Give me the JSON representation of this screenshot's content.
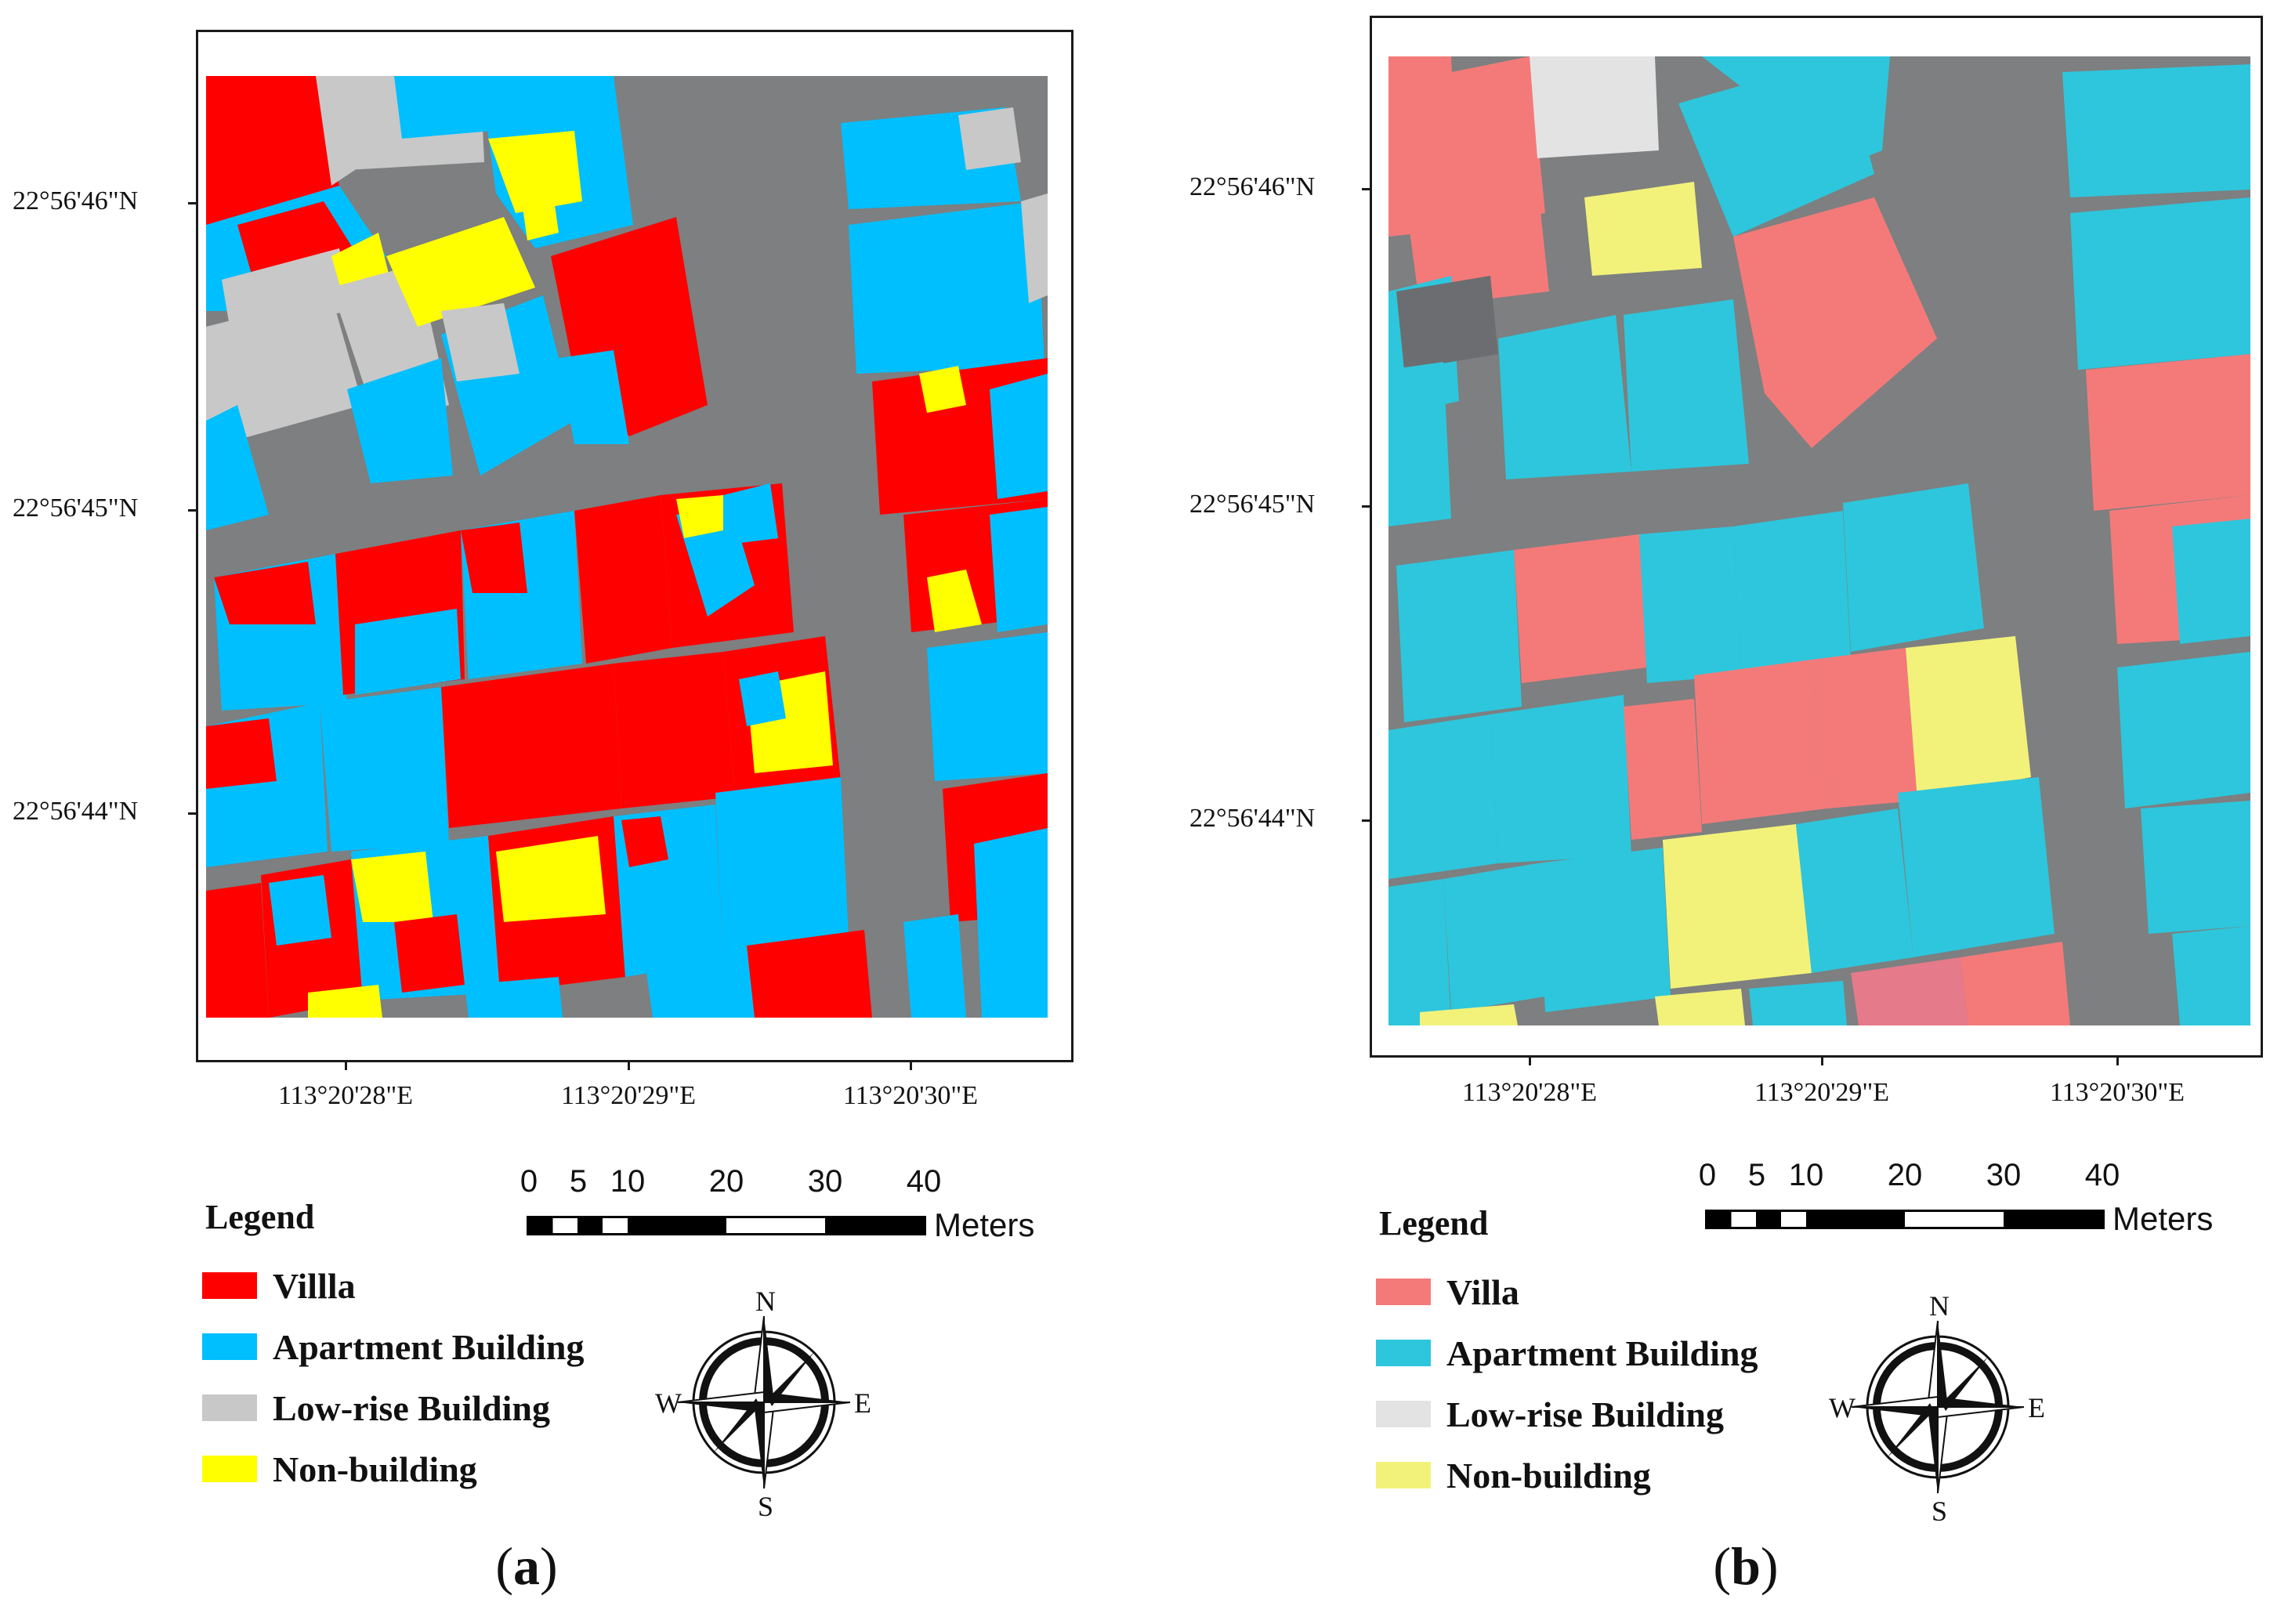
{
  "colors": {
    "villa_a": "#ff0000",
    "apartment_a": "#00bfff",
    "lowrise_a": "#c8c8c8",
    "nonbuilding_a": "#ffff00",
    "villa_b": "#f47a7a",
    "apartment_b": "#2ec6dc",
    "lowrise_b": "#e3e3e3",
    "nonbuilding_b": "#f2f27a",
    "road": "#7d7f80"
  },
  "panels": [
    {
      "caption_letter": "a",
      "lat_labels": [
        "22°56'46\"N",
        "22°56'45\"N",
        "22°56'44\"N"
      ],
      "lon_labels": [
        "113°20'28\"E",
        "113°20'29\"E",
        "113°20'30\"E"
      ],
      "legend": {
        "title": "Legend",
        "items": [
          {
            "label": "Villla",
            "icon": "villa-swatch"
          },
          {
            "label": "Apartment Building",
            "icon": "apartment-swatch"
          },
          {
            "label": "Low-rise Building",
            "icon": "lowrise-swatch"
          },
          {
            "label": "Non-building",
            "icon": "nonbuilding-swatch"
          }
        ]
      },
      "scale": {
        "ticks": [
          "0",
          "5",
          "10",
          "20",
          "30",
          "40"
        ],
        "unit": "Meters"
      },
      "compass": {
        "n": "N",
        "s": "S",
        "e": "E",
        "w": "W"
      }
    },
    {
      "caption_letter": "b",
      "lat_labels": [
        "22°56'46\"N",
        "22°56'45\"N",
        "22°56'44\"N"
      ],
      "lon_labels": [
        "113°20'28\"E",
        "113°20'29\"E",
        "113°20'30\"E"
      ],
      "legend": {
        "title": "Legend",
        "items": [
          {
            "label": "Villa",
            "icon": "villa-swatch"
          },
          {
            "label": "Apartment Building",
            "icon": "apartment-swatch"
          },
          {
            "label": "Low-rise Building",
            "icon": "lowrise-swatch"
          },
          {
            "label": "Non-building",
            "icon": "nonbuilding-swatch"
          }
        ]
      },
      "scale": {
        "ticks": [
          "0",
          "5",
          "10",
          "20",
          "30",
          "40"
        ],
        "unit": "Meters"
      },
      "compass": {
        "n": "N",
        "s": "S",
        "e": "E",
        "w": "W"
      }
    }
  ]
}
